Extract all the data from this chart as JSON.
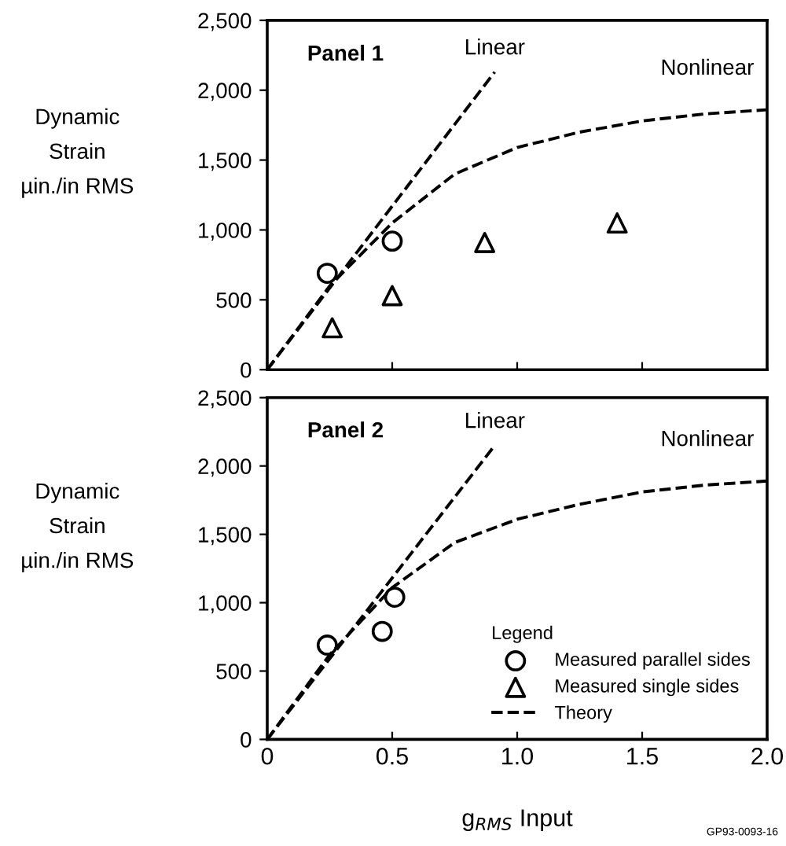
{
  "chart_data": [
    {
      "type": "scatter",
      "ylabel": "Dynamic\nStrain\nµin./in RMS",
      "annotations": [
        "Panel 1"
      ],
      "xlim": [
        0,
        2.0
      ],
      "xticks": [
        0,
        {
          "value": 0.5,
          "label": null
        },
        {
          "value": 1.0,
          "label": null
        },
        {
          "value": 1.5,
          "label": null
        },
        {
          "value": 2.0,
          "label": null
        }
      ],
      "ylim": [
        0,
        2500
      ],
      "yticks": [
        0,
        500,
        {
          "value": 1000,
          "label": "1,000"
        },
        {
          "value": 1500,
          "label": "1,500"
        },
        {
          "value": 2000,
          "label": "2,000"
        },
        {
          "value": 2500,
          "label": "2,500"
        }
      ],
      "tick_labels": "y",
      "grid": false,
      "legend": false,
      "series": [
        {
          "marker": "circle",
          "color": "#000000",
          "x": [
            0.24,
            0.5
          ],
          "values": [
            690,
            920
          ]
        },
        {
          "marker": "triangle",
          "color": "#000000",
          "x": [
            0.26,
            0.5,
            0.87,
            1.4
          ],
          "values": [
            300,
            530,
            910,
            1050
          ]
        },
        {
          "type": "line",
          "name": "Linear",
          "line_style": "dashed",
          "color": "#000000",
          "x": [
            0,
            0.91
          ],
          "values": [
            0,
            2130
          ]
        },
        {
          "type": "line",
          "name": "Nonlinear",
          "line_style": "dashed",
          "color": "#000000",
          "x": [
            0,
            0.25,
            0.5,
            0.75,
            1.0,
            1.25,
            1.5,
            1.75,
            2.0
          ],
          "values": [
            0,
            600,
            1050,
            1400,
            1590,
            1700,
            1780,
            1830,
            1860
          ]
        }
      ]
    },
    {
      "type": "scatter",
      "ylabel": "Dynamic\nStrain\nµin./in RMS",
      "xlabel": "g$_{RMS}$ Input",
      "legend_title": "Legend",
      "annotations": [
        "Panel 2",
        "GP93-0093-16"
      ],
      "xlim": [
        0,
        2.0
      ],
      "xticks": [
        0,
        {
          "value": 0.5,
          "label": "0.5"
        },
        {
          "value": 1.0,
          "label": "1.0"
        },
        {
          "value": 1.5,
          "label": "1.5"
        },
        {
          "value": 2.0,
          "label": "2.0"
        }
      ],
      "ylim": [
        0,
        2500
      ],
      "yticks": [
        0,
        500,
        {
          "value": 1000,
          "label": "1,000"
        },
        {
          "value": 1500,
          "label": "1,500"
        },
        {
          "value": 2000,
          "label": "2,000"
        },
        {
          "value": 2500,
          "label": "2,500"
        }
      ],
      "grid": false,
      "legend": "bottom right",
      "series": [
        {
          "name": "Measured parallel sides",
          "marker": "circle",
          "color": "#000000",
          "x": [
            0.24,
            0.46,
            0.51
          ],
          "values": [
            690,
            790,
            1040
          ]
        },
        {
          "name": "Measured single sides",
          "marker": "triangle",
          "color": "#000000"
        },
        {
          "type": "line",
          "name": "Theory",
          "line_style": "dashed",
          "color": "#000000"
        },
        {
          "type": "line",
          "name": "Linear",
          "line_style": "dashed",
          "color": "#000000",
          "x": [
            0,
            0.91
          ],
          "values": [
            0,
            2150
          ]
        },
        {
          "type": "line",
          "name": "Nonlinear",
          "line_style": "dashed",
          "color": "#000000",
          "x": [
            0,
            0.25,
            0.5,
            0.75,
            1.0,
            1.25,
            1.5,
            1.75,
            2.0
          ],
          "values": [
            0,
            620,
            1110,
            1440,
            1610,
            1720,
            1810,
            1860,
            1890
          ]
        }
      ]
    }
  ]
}
